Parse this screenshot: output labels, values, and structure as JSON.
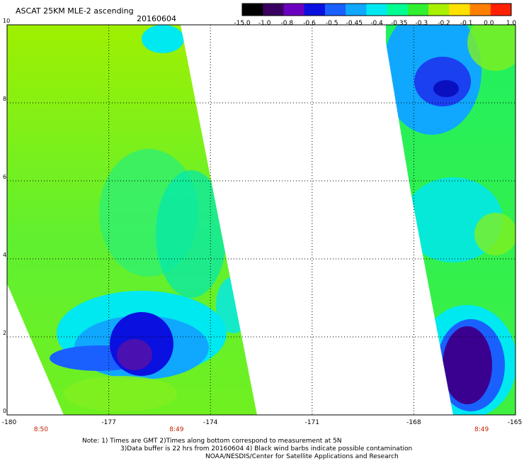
{
  "header": {
    "title": "ASCAT 25KM MLE-2 ascending",
    "date": "20160604"
  },
  "colorbar": {
    "labels": [
      "-15.0",
      "-1.0",
      "-0.8",
      "-0.6",
      "-0.5",
      "-0.45",
      "-0.4",
      "-0.35",
      "-0.3",
      "-0.2",
      "-0.1",
      "0.0",
      "1.0"
    ],
    "colors": [
      "#000000",
      "#3a0060",
      "#6a00c0",
      "#0a10e0",
      "#1a60ff",
      "#10a8ff",
      "#00e8f0",
      "#00ff90",
      "#30f030",
      "#a8f000",
      "#ffe000",
      "#ff8000",
      "#ff2000"
    ]
  },
  "axes": {
    "lon_ticks": [
      "-180",
      "-177",
      "-174",
      "-171",
      "-168",
      "-165"
    ],
    "lat_ticks": [
      "0",
      "2",
      "4",
      "6",
      "8",
      "10"
    ],
    "lon_range": [
      -180,
      -165
    ],
    "lat_range": [
      0,
      10
    ]
  },
  "swath_times": [
    {
      "lon": -179,
      "label": "8:50"
    },
    {
      "lon": -175,
      "label": "8:49"
    },
    {
      "lon": -166,
      "label": "8:49"
    }
  ],
  "notes": {
    "line1": "Note: 1) Times are GMT 2)Times along bottom correspond to measurement at 5N",
    "line2": "3)Data buffer is 22 hrs from 20160604 4) Black wind barbs indicate possible contamination",
    "line3": "NOAA/NESDIS/Center for Satellite Applications and Research"
  }
}
